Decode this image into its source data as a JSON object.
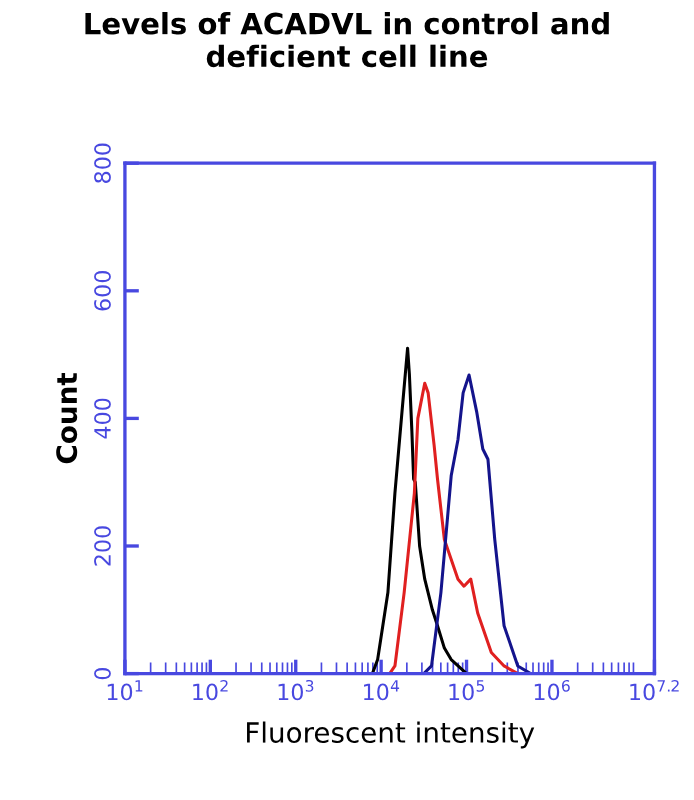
{
  "chart_data": {
    "type": "line",
    "title": "Levels of ACADVL in control and\ndeficient cell line",
    "xlabel": "Fluorescent intensity",
    "ylabel": "Count",
    "log": "x",
    "xlim": [
      10,
      15848932
    ],
    "xticks": [
      {
        "value": 10,
        "label": "10$^{1}$"
      },
      {
        "value": 100,
        "label": "10$^{2}$"
      },
      {
        "value": 1000,
        "label": "10$^{3}$"
      },
      {
        "value": 10000,
        "label": "10$^{4}$"
      },
      {
        "value": 100000,
        "label": "10$^{5}$"
      },
      {
        "value": 1000000,
        "label": "10$^{6}$"
      },
      {
        "value": 15848932,
        "label": "10$^{7.2}$"
      }
    ],
    "ylim": [
      0,
      800
    ],
    "yticks": [
      0,
      200,
      400,
      600,
      800
    ],
    "series": [
      {
        "color": "#000000",
        "x": [
          7900,
          9100,
          12000,
          14500,
          17800,
          20400,
          21400,
          22900,
          24000,
          25100,
          28200,
          32400,
          39800,
          45700,
          55000,
          66100,
          100000
        ],
        "values": [
          0,
          22,
          127,
          283,
          420,
          510,
          470,
          380,
          305,
          300,
          200,
          148,
          100,
          75,
          40,
          22,
          0
        ]
      },
      {
        "color": "#e02020",
        "x": [
          12600,
          14500,
          18600,
          24500,
          26900,
          32400,
          35500,
          41700,
          45700,
          55000,
          79400,
          93300,
          112000,
          135000,
          195000,
          275000,
          398000
        ],
        "values": [
          0,
          12,
          127,
          283,
          400,
          455,
          440,
          358,
          305,
          210,
          148,
          137,
          148,
          95,
          33,
          12,
          0
        ]
      },
      {
        "color": "#14148c",
        "x": [
          31600,
          38900,
          50100,
          66100,
          79400,
          91200,
          107000,
          132000,
          155000,
          178000,
          214000,
          275000,
          398000,
          562000
        ],
        "values": [
          0,
          12,
          127,
          310,
          367,
          440,
          468,
          409,
          352,
          336,
          210,
          75,
          12,
          0
        ]
      }
    ]
  }
}
